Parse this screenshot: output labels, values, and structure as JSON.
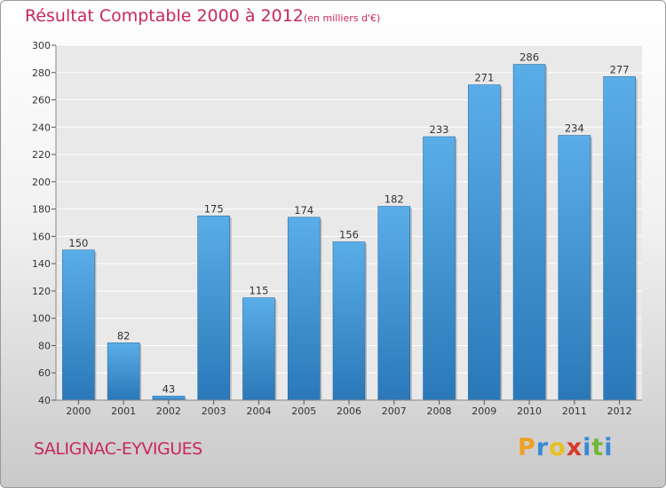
{
  "header": {
    "title": "Résultat Comptable 2000 à 2012",
    "subtitle": "(en milliers d'€)"
  },
  "footer": {
    "commune": "SALIGNAC-EYVIGUES"
  },
  "logo": {
    "letters": [
      "P",
      "r",
      "o",
      "x",
      "i",
      "t",
      "i"
    ],
    "colors": [
      "#f0a020",
      "#3a8ad6",
      "#e8c020",
      "#d83a2a",
      "#3a8ad6",
      "#70b838",
      "#3a8ad6"
    ]
  },
  "colors": {
    "bar_top": "#5aaee8",
    "bar_bottom": "#2a78b8",
    "title": "#c8285a"
  },
  "chart_data": {
    "type": "bar",
    "title": "Résultat Comptable 2000 à 2012",
    "subtitle": "(en milliers d'€)",
    "categories": [
      "2000",
      "2001",
      "2002",
      "2003",
      "2004",
      "2005",
      "2006",
      "2007",
      "2008",
      "2009",
      "2010",
      "2011",
      "2012"
    ],
    "values": [
      150,
      82,
      43,
      175,
      115,
      174,
      156,
      182,
      233,
      271,
      286,
      234,
      277
    ],
    "ylim": [
      40,
      300
    ],
    "yticks": [
      40,
      60,
      80,
      100,
      120,
      140,
      160,
      180,
      200,
      220,
      240,
      260,
      280,
      300
    ],
    "xlabel": "",
    "ylabel": "",
    "grid": true,
    "legend": "none"
  }
}
